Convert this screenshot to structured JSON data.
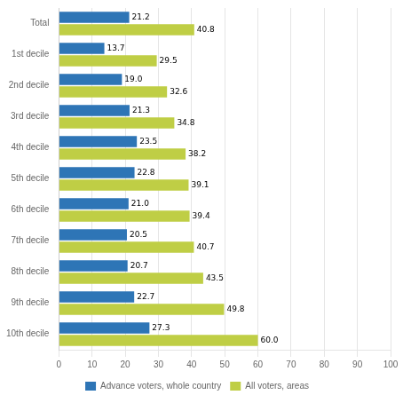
{
  "chart_data": {
    "type": "bar",
    "orientation": "horizontal",
    "categories": [
      "Total",
      "1st decile",
      "2nd decile",
      "3rd decile",
      "4th decile",
      "5th decile",
      "6th decile",
      "7th decile",
      "8th decile",
      "9th decile",
      "10th decile"
    ],
    "series": [
      {
        "name": "Advance voters, whole country",
        "color": "#2E75B6",
        "values": [
          21.2,
          13.7,
          19.0,
          21.3,
          23.5,
          22.8,
          21.0,
          20.5,
          20.7,
          22.7,
          27.3
        ],
        "value_labels": [
          "21.2",
          "13.7",
          "19.0",
          "21.3",
          "23.5",
          "22.8",
          "21.0",
          "20.5",
          "20.7",
          "22.7",
          "27.3"
        ]
      },
      {
        "name": "All voters, areas",
        "color": "#BFCE45",
        "values": [
          40.8,
          29.5,
          32.6,
          34.8,
          38.2,
          39.1,
          39.4,
          40.7,
          43.5,
          49.8,
          60.0
        ],
        "value_labels": [
          "40.8",
          "29.5",
          "32.6",
          "34.8",
          "38.2",
          "39.1",
          "39.4",
          "40.7",
          "43.5",
          "49.8",
          "60.0"
        ]
      }
    ],
    "xlim": [
      0,
      100
    ],
    "xticks": [
      0,
      10,
      20,
      30,
      40,
      50,
      60,
      70,
      80,
      90,
      100
    ],
    "grid": true,
    "legend": "bottom",
    "data_labels": true
  }
}
